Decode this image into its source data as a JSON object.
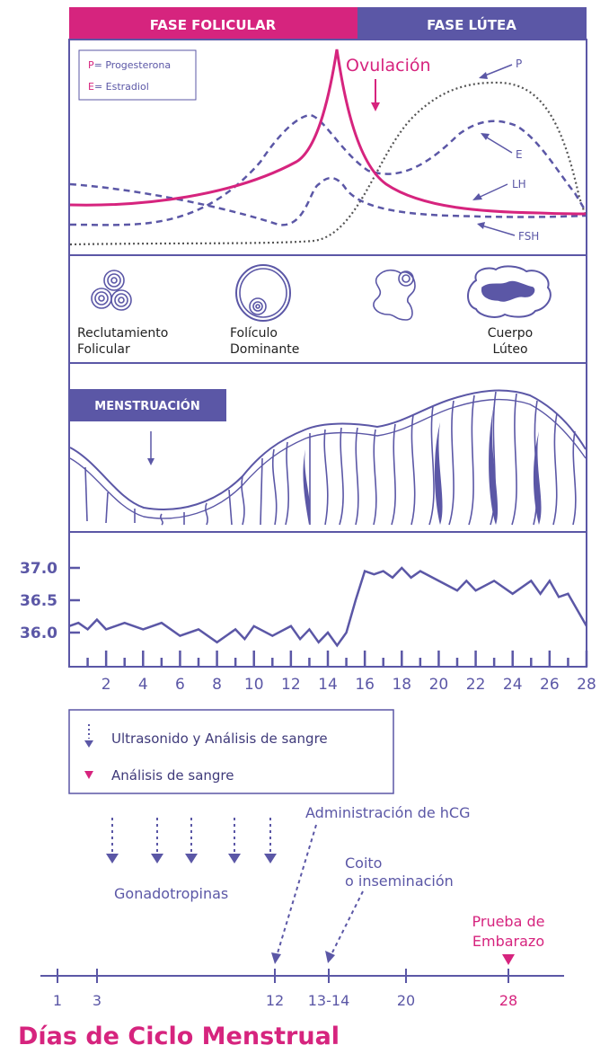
{
  "colors": {
    "purple": "#5b57a6",
    "magenta": "#d6247e",
    "dark": "#3f3a7a",
    "white": "#ffffff",
    "dotted": "#555555"
  },
  "header": {
    "follicular": "FASE FOLICULAR",
    "luteal": "FASE LÚTEA"
  },
  "hormones": {
    "legend_p_letter": "P",
    "legend_p_text": "= Progesterona",
    "legend_e_letter": "E",
    "legend_e_text": "= Estradiol",
    "ovulation": "Ovulación",
    "label_p": "P",
    "label_e": "E",
    "label_lh": "LH",
    "label_fsh": "FSH"
  },
  "follicle": {
    "recruitment_1": "Reclutamiento",
    "recruitment_2": "Folicular",
    "dominant_1": "Folículo",
    "dominant_2": "Dominante",
    "luteum_1": "Cuerpo",
    "luteum_2": "Lúteo"
  },
  "endometrium": {
    "menstruation": "MENSTRUACIÓN"
  },
  "chart_data": {
    "type": "line",
    "title": "",
    "xlabel": "",
    "ylabel": "",
    "y_ticks": [
      "37.0",
      "36.5",
      "36.0"
    ],
    "x_ticks": [
      "2",
      "4",
      "6",
      "8",
      "10",
      "12",
      "14",
      "16",
      "18",
      "20",
      "22",
      "24",
      "26",
      "28"
    ],
    "xlim": [
      0,
      28
    ],
    "ylim": [
      35.5,
      37.1
    ],
    "series": [
      {
        "values": [
          [
            0,
            36.1
          ],
          [
            0.5,
            36.15
          ],
          [
            1,
            36.05
          ],
          [
            1.5,
            36.2
          ],
          [
            2,
            36.05
          ],
          [
            3,
            36.15
          ],
          [
            4,
            36.05
          ],
          [
            5,
            36.15
          ],
          [
            6,
            35.95
          ],
          [
            7,
            36.05
          ],
          [
            8,
            35.85
          ],
          [
            9,
            36.05
          ],
          [
            9.5,
            35.9
          ],
          [
            10,
            36.1
          ],
          [
            11,
            35.95
          ],
          [
            12,
            36.1
          ],
          [
            12.5,
            35.9
          ],
          [
            13,
            36.05
          ],
          [
            13.5,
            35.85
          ],
          [
            14,
            36.0
          ],
          [
            14.5,
            35.8
          ],
          [
            15,
            36.0
          ],
          [
            15.5,
            36.5
          ],
          [
            16,
            36.95
          ],
          [
            16.5,
            36.9
          ],
          [
            17,
            36.95
          ],
          [
            17.5,
            36.85
          ],
          [
            18,
            37.0
          ],
          [
            18.5,
            36.85
          ],
          [
            19,
            36.95
          ],
          [
            20,
            36.8
          ],
          [
            21,
            36.65
          ],
          [
            21.5,
            36.8
          ],
          [
            22,
            36.65
          ],
          [
            23,
            36.8
          ],
          [
            24,
            36.6
          ],
          [
            25,
            36.8
          ],
          [
            25.5,
            36.6
          ],
          [
            26,
            36.8
          ],
          [
            26.5,
            36.55
          ],
          [
            27,
            36.6
          ],
          [
            28,
            36.1
          ]
        ]
      }
    ]
  },
  "legend": {
    "ultrasound": "Ultrasonido y Análisis de sangre",
    "blood": "Análisis de sangre"
  },
  "timeline": {
    "hcg": "Administración de hCG",
    "coito_1": "Coito",
    "coito_2": "o inseminación",
    "pregnancy_1": "Prueba de",
    "pregnancy_2": "Embarazo",
    "gonadotropins": "Gonadotropinas",
    "ticks": [
      "1",
      "3",
      "12",
      "13-14",
      "20",
      "28"
    ],
    "title": "Días de Ciclo Menstrual"
  }
}
